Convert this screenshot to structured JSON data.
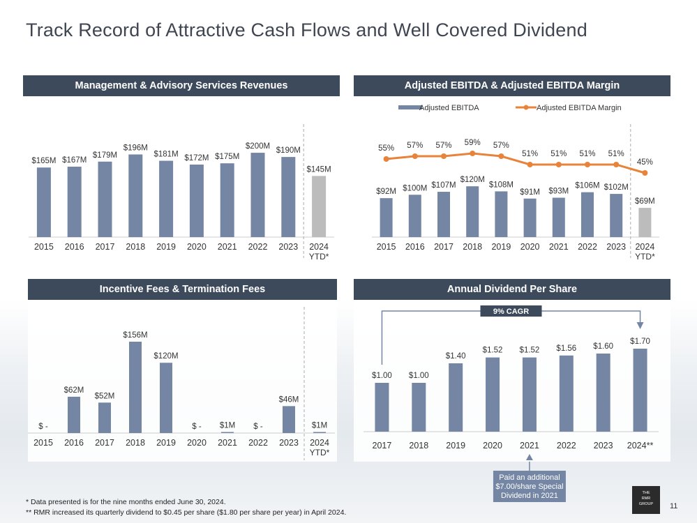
{
  "page": {
    "title": "Track Record of Attractive Cash Flows and Well Covered Dividend",
    "footnote1": "*  Data presented is for the nine months ended June 30, 2024.",
    "footnote2": "** RMR increased its quarterly dividend to $0.45 per share ($1.80 per share per year) in April 2024.",
    "page_number": "11",
    "logo": {
      "line1": "THE",
      "line2": "RMR",
      "line3": "GROUP"
    }
  },
  "colors": {
    "bar": "#7486a4",
    "bar_ytd": "#bcbcbc",
    "header": "#3d4a5c",
    "line": "#e8833a",
    "text": "#333333"
  },
  "chart_data": [
    {
      "type": "bar",
      "title": "Management & Advisory Services Revenues",
      "categories": [
        "2015",
        "2016",
        "2017",
        "2018",
        "2019",
        "2020",
        "2021",
        "2022",
        "2023",
        "2024"
      ],
      "category_sub": [
        "",
        "",
        "",
        "",
        "",
        "",
        "",
        "",
        "",
        "YTD*"
      ],
      "values": [
        165,
        167,
        179,
        196,
        181,
        172,
        175,
        200,
        190,
        145
      ],
      "labels": [
        "$165M",
        "$167M",
        "$179M",
        "$196M",
        "$181M",
        "$172M",
        "$175M",
        "$200M",
        "$190M",
        "$145M"
      ],
      "ylim": [
        0,
        215
      ]
    },
    {
      "type": "bar",
      "title": "Adjusted EBITDA & Adjusted EBITDA Margin",
      "legend": [
        "Adjusted EBITDA",
        "Adjusted EBITDA Margin"
      ],
      "categories": [
        "2015",
        "2016",
        "2017",
        "2018",
        "2019",
        "2020",
        "2021",
        "2022",
        "2023",
        "2024"
      ],
      "category_sub": [
        "",
        "",
        "",
        "",
        "",
        "",
        "",
        "",
        "",
        "YTD*"
      ],
      "values": [
        92,
        100,
        107,
        120,
        108,
        91,
        93,
        106,
        102,
        69
      ],
      "labels": [
        "$92M",
        "$100M",
        "$107M",
        "$120M",
        "$108M",
        "$91M",
        "$93M",
        "$106M",
        "$102M",
        "$69M"
      ],
      "line_values": [
        55,
        57,
        57,
        59,
        57,
        51,
        51,
        51,
        51,
        45
      ],
      "line_labels": [
        "55%",
        "57%",
        "57%",
        "59%",
        "57%",
        "51%",
        "51%",
        "51%",
        "51%",
        "45%"
      ],
      "ylim": [
        0,
        140
      ]
    },
    {
      "type": "bar",
      "title": "Incentive Fees & Termination Fees",
      "categories": [
        "2015",
        "2016",
        "2017",
        "2018",
        "2019",
        "2020",
        "2021",
        "2022",
        "2023",
        "2024"
      ],
      "category_sub": [
        "",
        "",
        "",
        "",
        "",
        "",
        "",
        "",
        "",
        "YTD*"
      ],
      "values": [
        0,
        62,
        52,
        156,
        120,
        0,
        1,
        0,
        46,
        1
      ],
      "labels": [
        "$ -",
        "$62M",
        "$52M",
        "$156M",
        "$120M",
        "$ -",
        "$1M",
        "$ -",
        "$46M",
        "$1M"
      ],
      "ylim": [
        0,
        156
      ]
    },
    {
      "type": "bar",
      "title": "Annual Dividend Per Share",
      "categories": [
        "2017",
        "2018",
        "2019",
        "2020",
        "2021",
        "2022",
        "2023",
        "2024**"
      ],
      "values": [
        1.0,
        1.0,
        1.4,
        1.52,
        1.52,
        1.56,
        1.6,
        1.7
      ],
      "labels": [
        "$1.00",
        "$1.00",
        "$1.40",
        "$1.52",
        "$1.52",
        "$1.56",
        "$1.60",
        "$1.70"
      ],
      "cagr_label": "9% CAGR",
      "annotation": [
        "Paid an additional",
        "$7.00/share Special",
        "Dividend in 2021"
      ],
      "ylim": [
        0,
        1.7
      ]
    }
  ]
}
